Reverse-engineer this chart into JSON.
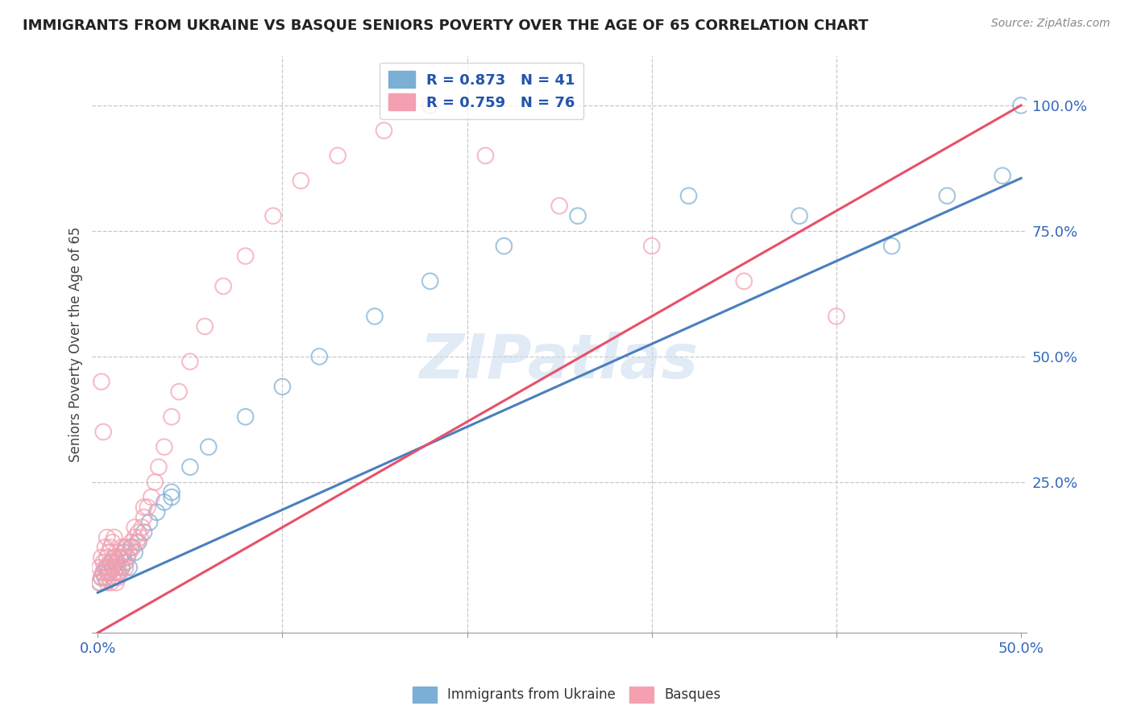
{
  "title": "IMMIGRANTS FROM UKRAINE VS BASQUE SENIORS POVERTY OVER THE AGE OF 65 CORRELATION CHART",
  "source": "Source: ZipAtlas.com",
  "ylabel": "Seniors Poverty Over the Age of 65",
  "y_tick_labels": [
    "100.0%",
    "75.0%",
    "50.0%",
    "25.0%"
  ],
  "y_tick_positions": [
    1.0,
    0.75,
    0.5,
    0.25
  ],
  "x_tick_positions": [
    0.0,
    0.1,
    0.2,
    0.3,
    0.4,
    0.5
  ],
  "xlim": [
    -0.003,
    0.503
  ],
  "ylim": [
    -0.05,
    1.1
  ],
  "blue_color": "#7BAFD4",
  "pink_color": "#F4A0B0",
  "blue_line_color": "#4A7FBF",
  "pink_line_color": "#E8506A",
  "watermark": "ZIPatlas",
  "ukraine_R": 0.873,
  "ukraine_N": 41,
  "basque_R": 0.759,
  "basque_N": 76,
  "ukraine_x": [
    0.001,
    0.002,
    0.003,
    0.004,
    0.005,
    0.006,
    0.007,
    0.008,
    0.009,
    0.01,
    0.011,
    0.012,
    0.013,
    0.014,
    0.015,
    0.016,
    0.017,
    0.018,
    0.02,
    0.022,
    0.025,
    0.028,
    0.032,
    0.036,
    0.04,
    0.05,
    0.06,
    0.08,
    0.1,
    0.12,
    0.15,
    0.18,
    0.22,
    0.26,
    0.32,
    0.38,
    0.43,
    0.46,
    0.49,
    0.5,
    0.04
  ],
  "ukraine_y": [
    0.05,
    0.06,
    0.07,
    0.06,
    0.08,
    0.07,
    0.09,
    0.08,
    0.1,
    0.09,
    0.07,
    0.1,
    0.08,
    0.11,
    0.09,
    0.1,
    0.08,
    0.12,
    0.11,
    0.13,
    0.15,
    0.17,
    0.19,
    0.21,
    0.23,
    0.28,
    0.32,
    0.38,
    0.44,
    0.5,
    0.58,
    0.65,
    0.72,
    0.78,
    0.82,
    0.78,
    0.72,
    0.82,
    0.86,
    1.0,
    0.22
  ],
  "basque_x": [
    0.001,
    0.001,
    0.002,
    0.002,
    0.002,
    0.003,
    0.003,
    0.003,
    0.004,
    0.004,
    0.004,
    0.005,
    0.005,
    0.005,
    0.005,
    0.006,
    0.006,
    0.006,
    0.007,
    0.007,
    0.007,
    0.008,
    0.008,
    0.008,
    0.009,
    0.009,
    0.009,
    0.01,
    0.01,
    0.01,
    0.011,
    0.011,
    0.012,
    0.012,
    0.013,
    0.013,
    0.014,
    0.015,
    0.015,
    0.016,
    0.017,
    0.018,
    0.019,
    0.02,
    0.021,
    0.022,
    0.023,
    0.024,
    0.025,
    0.027,
    0.029,
    0.031,
    0.033,
    0.036,
    0.04,
    0.044,
    0.05,
    0.058,
    0.068,
    0.08,
    0.095,
    0.11,
    0.13,
    0.155,
    0.18,
    0.21,
    0.25,
    0.3,
    0.35,
    0.4,
    0.008,
    0.01,
    0.012,
    0.015,
    0.02,
    0.025
  ],
  "basque_y": [
    0.05,
    0.08,
    0.06,
    0.1,
    0.45,
    0.07,
    0.09,
    0.35,
    0.06,
    0.08,
    0.12,
    0.05,
    0.07,
    0.1,
    0.14,
    0.06,
    0.08,
    0.11,
    0.05,
    0.09,
    0.12,
    0.06,
    0.09,
    0.13,
    0.07,
    0.1,
    0.14,
    0.05,
    0.08,
    0.11,
    0.06,
    0.09,
    0.07,
    0.1,
    0.08,
    0.12,
    0.1,
    0.08,
    0.12,
    0.1,
    0.11,
    0.13,
    0.12,
    0.14,
    0.13,
    0.15,
    0.14,
    0.16,
    0.18,
    0.2,
    0.22,
    0.25,
    0.28,
    0.32,
    0.38,
    0.43,
    0.49,
    0.56,
    0.64,
    0.7,
    0.78,
    0.85,
    0.9,
    0.95,
    1.0,
    0.9,
    0.8,
    0.72,
    0.65,
    0.58,
    0.06,
    0.08,
    0.1,
    0.12,
    0.16,
    0.2
  ]
}
